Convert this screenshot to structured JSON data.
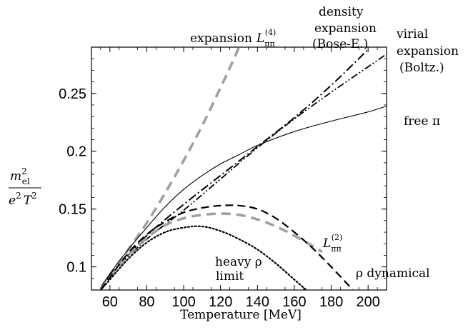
{
  "chart_data": {
    "type": "line",
    "xlabel": "Temperature [MeV]",
    "ylabel": "m_el^2 / (e^2 T^2)",
    "xlim": [
      50,
      210
    ],
    "ylim": [
      0.08,
      0.29
    ],
    "xticks": [
      "60",
      "80",
      "100",
      "120",
      "140",
      "160",
      "180",
      "200"
    ],
    "yticks": [
      "0.1",
      "0.15",
      "0.2",
      "0.25"
    ],
    "series": [
      {
        "name": "expansion L_ππ^(4)",
        "style": "dashed-gray-thick",
        "x": [
          55,
          60,
          70,
          80,
          90,
          100,
          110,
          120,
          125,
          130,
          135
        ],
        "y": [
          0.08,
          0.093,
          0.115,
          0.138,
          0.164,
          0.192,
          0.222,
          0.255,
          0.272,
          0.29,
          0.31
        ]
      },
      {
        "name": "density expansion (Bose-E.)",
        "style": "dash-dot",
        "x": [
          55,
          60,
          80,
          100,
          120,
          140,
          160,
          180,
          200
        ],
        "y": [
          0.081,
          0.093,
          0.127,
          0.154,
          0.179,
          0.204,
          0.229,
          0.257,
          0.288
        ]
      },
      {
        "name": "virial expansion (Boltz.)",
        "style": "dash-dot-dot",
        "x": [
          55,
          60,
          80,
          100,
          120,
          140,
          160,
          180,
          200,
          210
        ],
        "y": [
          0.081,
          0.093,
          0.124,
          0.149,
          0.176,
          0.203,
          0.228,
          0.251,
          0.273,
          0.284
        ]
      },
      {
        "name": "free π",
        "style": "solid-thin",
        "x": [
          55,
          60,
          70,
          80,
          90,
          100,
          110,
          120,
          130,
          140,
          160,
          180,
          200,
          210
        ],
        "y": [
          0.081,
          0.094,
          0.115,
          0.134,
          0.152,
          0.167,
          0.179,
          0.189,
          0.197,
          0.205,
          0.217,
          0.226,
          0.234,
          0.239
        ]
      },
      {
        "name": "L_ππ^(2)",
        "style": "dashed-gray-thick",
        "x": [
          55,
          60,
          70,
          80,
          90,
          100,
          110,
          120,
          130,
          140,
          150,
          160,
          170,
          175
        ],
        "y": [
          0.08,
          0.091,
          0.11,
          0.125,
          0.136,
          0.142,
          0.145,
          0.146,
          0.145,
          0.141,
          0.135,
          0.127,
          0.118,
          0.113
        ]
      },
      {
        "name": "ρ dynamical",
        "style": "dashed-black",
        "x": [
          55,
          60,
          70,
          80,
          90,
          100,
          110,
          120,
          130,
          140,
          150,
          160,
          170,
          180,
          190,
          193
        ],
        "y": [
          0.08,
          0.091,
          0.112,
          0.128,
          0.139,
          0.147,
          0.151,
          0.153,
          0.153,
          0.15,
          0.142,
          0.13,
          0.116,
          0.1,
          0.083,
          0.077
        ]
      },
      {
        "name": "heavy ρ limit",
        "style": "dotted",
        "x": [
          55,
          60,
          70,
          80,
          90,
          100,
          110,
          120,
          130,
          140,
          150,
          160,
          168
        ],
        "y": [
          0.08,
          0.089,
          0.107,
          0.121,
          0.13,
          0.134,
          0.135,
          0.131,
          0.124,
          0.115,
          0.103,
          0.089,
          0.078
        ]
      }
    ],
    "annotations": {
      "exp4": "expansion",
      "exp4_math": "L",
      "exp4_sub": "ππ",
      "exp4_sup": "(4)",
      "density1": "density",
      "density2": "expansion",
      "density3": "(Bose-E.)",
      "virial1": "virial",
      "virial2": "expansion",
      "virial3": "(Boltz.)",
      "free": "free π",
      "l2_math": "L",
      "l2_sub": "ππ",
      "l2_sup": "(2)",
      "heavy1": "heavy ρ",
      "heavy2": "limit",
      "rhodyn": "ρ dynamical"
    },
    "ylabel_num": "m",
    "ylabel_num_sup": "2",
    "ylabel_num_sub": "el",
    "ylabel_den": "e",
    "ylabel_den_sup": "2",
    "ylabel_den_T": "T",
    "ylabel_den_T_sup": "2",
    "grid": false,
    "legend": "none"
  },
  "colors": {
    "gray": "#a0a0a0",
    "black": "#000000"
  }
}
